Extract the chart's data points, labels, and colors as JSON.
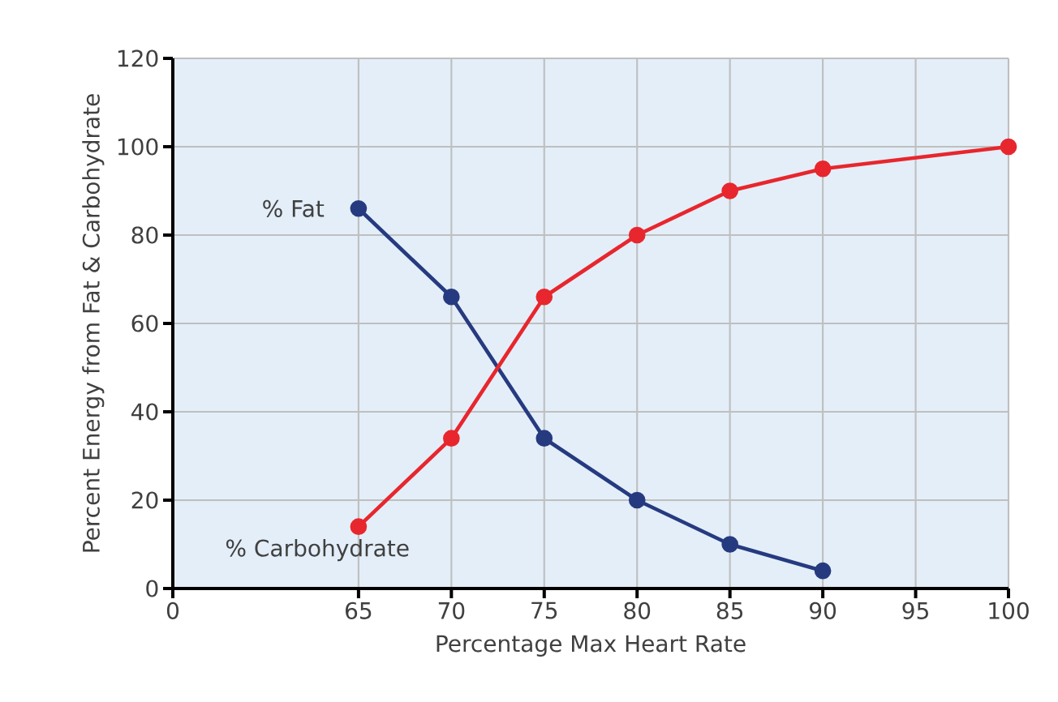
{
  "chart_data": {
    "type": "line",
    "xlabel": "Percentage Max Heart Rate",
    "ylabel": "Percent Energy from Fat & Carbohydrate",
    "categories": [
      "0",
      null,
      "65",
      "70",
      "75",
      "80",
      "85",
      "90",
      "95",
      "100"
    ],
    "series": [
      {
        "name": "% Fat",
        "color": "#263a80",
        "x": [
          "65",
          "70",
          "75",
          "80",
          "85",
          "90"
        ],
        "values": [
          86,
          66,
          34,
          20,
          10,
          4
        ]
      },
      {
        "name": "% Carbohydrate",
        "color": "#e8262d",
        "x": [
          "65",
          "70",
          "75",
          "80",
          "85",
          "90",
          "100"
        ],
        "values": [
          14,
          34,
          66,
          80,
          90,
          95,
          100
        ]
      }
    ],
    "ylim": [
      0,
      120
    ],
    "yticks": [
      0,
      20,
      40,
      60,
      80,
      100,
      120
    ],
    "grid": true,
    "marker": "circle",
    "line_style": "solid"
  }
}
